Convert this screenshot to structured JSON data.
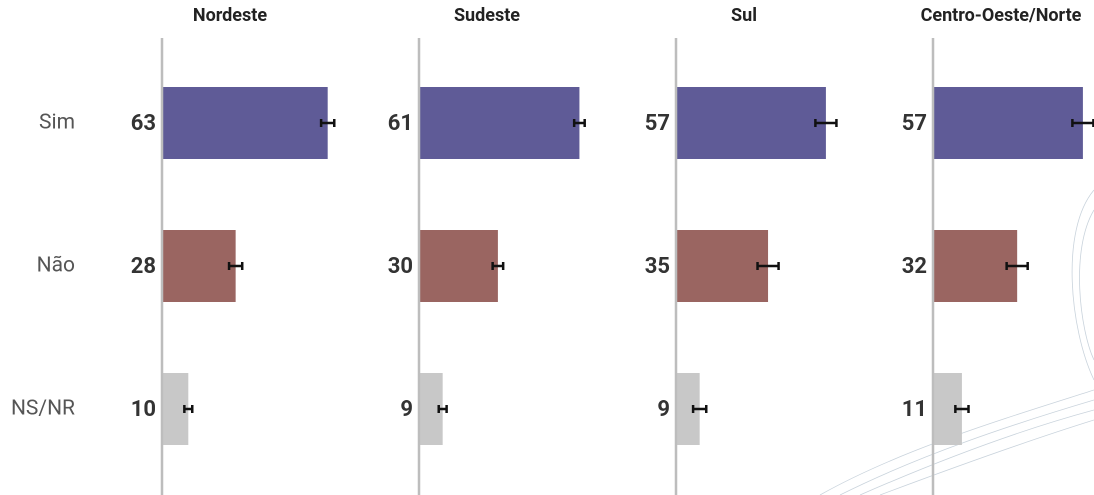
{
  "chart_data": [
    {
      "type": "bar",
      "title": "Nordeste",
      "categories": [
        "Sim",
        "Não",
        "NS/NR"
      ],
      "values": [
        63,
        28,
        10
      ],
      "errors": [
        2.5,
        2.5,
        1.5
      ],
      "colors": [
        "#5f5b97",
        "#9a6561",
        "#c8c8c8"
      ]
    },
    {
      "type": "bar",
      "title": "Sudeste",
      "values": [
        61,
        30,
        9
      ],
      "errors": [
        2,
        2,
        1.5
      ],
      "colors": [
        "#5f5b97",
        "#9a6561",
        "#c8c8c8"
      ]
    },
    {
      "type": "bar",
      "title": "Sul",
      "values": [
        57,
        35,
        9
      ],
      "errors": [
        4,
        4,
        2.5
      ],
      "colors": [
        "#5f5b97",
        "#9a6561",
        "#c8c8c8"
      ]
    },
    {
      "type": "bar",
      "title": "Centro-Oeste/Norte",
      "values": [
        57,
        32,
        11
      ],
      "errors": [
        4,
        4,
        2.5
      ],
      "colors": [
        "#5f5b97",
        "#9a6561",
        "#c8c8c8"
      ]
    }
  ]
}
